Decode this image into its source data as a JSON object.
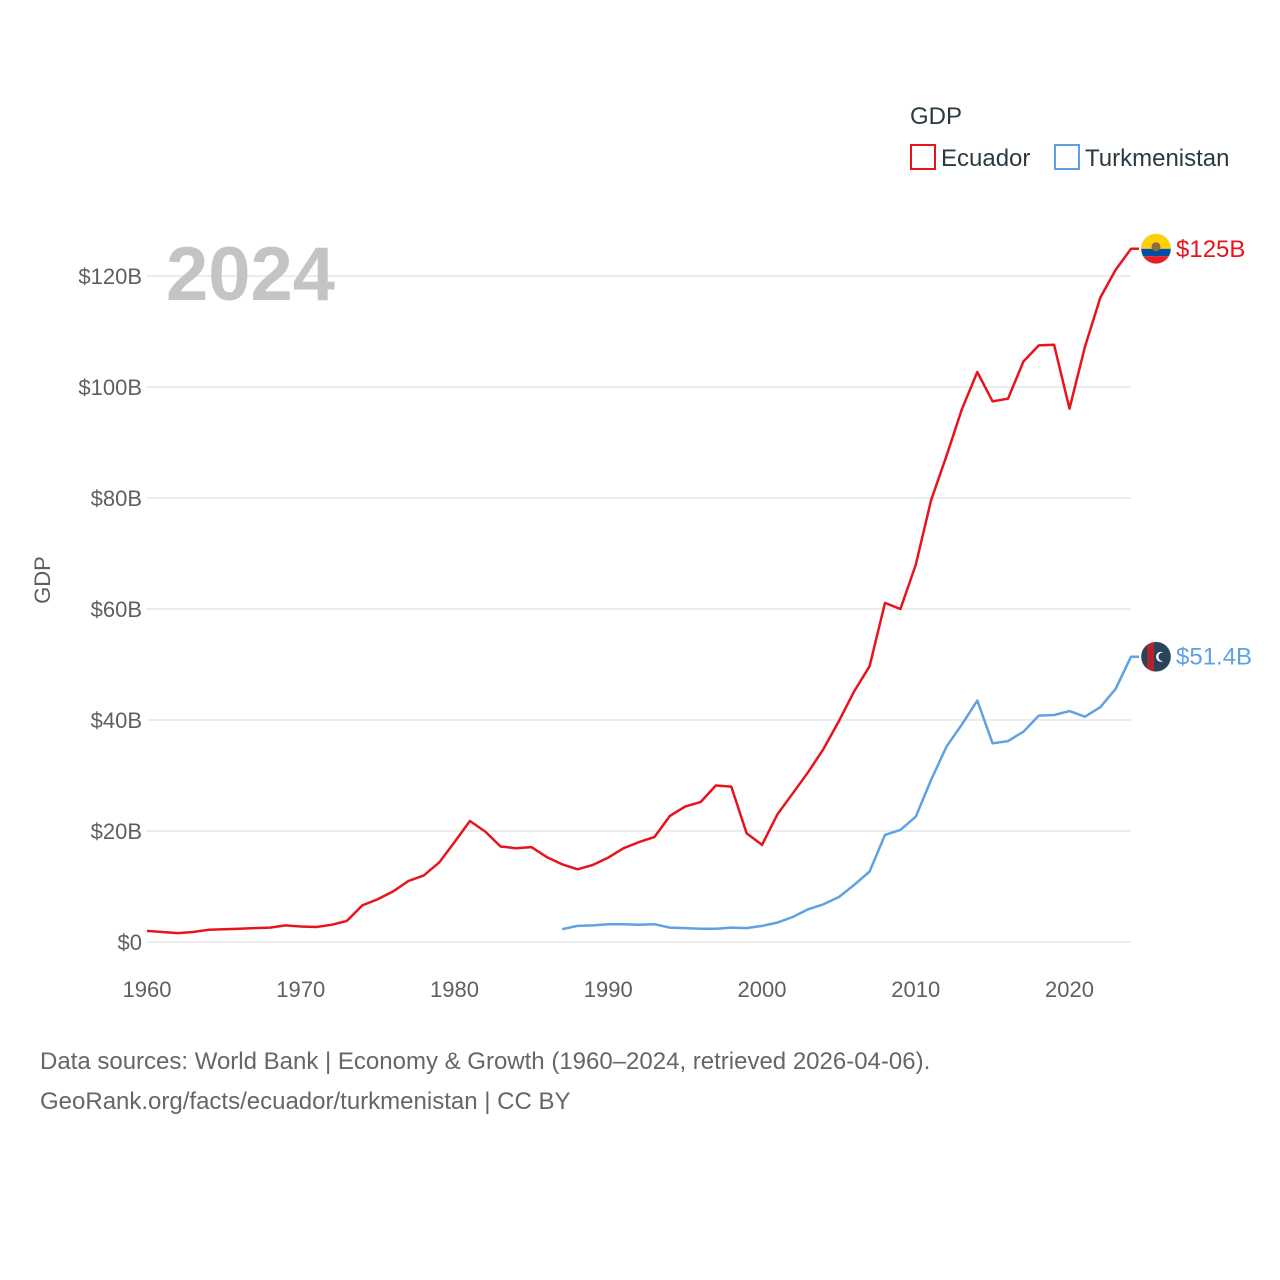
{
  "chart_data": {
    "type": "line",
    "ylabel": "GDP",
    "year_label": "2024",
    "legend_title": "GDP",
    "xlim": [
      1960,
      2024
    ],
    "ylim": [
      0,
      125
    ],
    "x_ticks": [
      1960,
      1970,
      1980,
      1990,
      2000,
      2010,
      2020
    ],
    "x_tick_labels": [
      "1960",
      "1970",
      "1980",
      "1990",
      "2000",
      "2010",
      "2020"
    ],
    "y_ticks": [
      0,
      20,
      40,
      60,
      80,
      100,
      120
    ],
    "y_tick_labels": [
      "$0",
      "$20B",
      "$40B",
      "$60B",
      "$80B",
      "$100B",
      "$120B"
    ],
    "series": [
      {
        "name": "Ecuador",
        "color": "#e8141c",
        "end_label": "$125B",
        "flag_icon": "ecuador-flag-icon",
        "x": [
          1960,
          1961,
          1962,
          1963,
          1964,
          1965,
          1966,
          1967,
          1968,
          1969,
          1970,
          1971,
          1972,
          1973,
          1974,
          1975,
          1976,
          1977,
          1978,
          1979,
          1980,
          1981,
          1982,
          1983,
          1984,
          1985,
          1986,
          1987,
          1988,
          1989,
          1990,
          1991,
          1992,
          1993,
          1994,
          1995,
          1996,
          1997,
          1998,
          1999,
          2000,
          2001,
          2002,
          2003,
          2004,
          2005,
          2006,
          2007,
          2008,
          2009,
          2010,
          2011,
          2012,
          2013,
          2014,
          2015,
          2016,
          2017,
          2018,
          2019,
          2020,
          2021,
          2022,
          2023,
          2024
        ],
        "values": [
          2.0,
          1.8,
          1.6,
          1.8,
          2.2,
          2.3,
          2.4,
          2.5,
          2.6,
          3.0,
          2.8,
          2.7,
          3.1,
          3.8,
          6.6,
          7.7,
          9.1,
          11.0,
          12.0,
          14.3,
          18.0,
          21.8,
          19.9,
          17.2,
          16.9,
          17.1,
          15.3,
          14.0,
          13.1,
          13.9,
          15.2,
          16.9,
          18.0,
          18.9,
          22.7,
          24.4,
          25.2,
          28.2,
          28.0,
          19.6,
          17.5,
          23.0,
          26.8,
          30.6,
          34.8,
          39.8,
          45.2,
          49.7,
          61.1,
          60.0,
          68.0,
          79.6,
          87.6,
          96.0,
          102.7,
          97.4,
          97.9,
          104.6,
          107.5,
          107.6,
          96.1,
          107.2,
          116.1,
          121.1,
          124.9
        ]
      },
      {
        "name": "Turkmenistan",
        "color": "#5fa2e3",
        "end_label": "$51.4B",
        "flag_icon": "turkmenistan-flag-icon",
        "x": [
          1987,
          1988,
          1989,
          1990,
          1991,
          1992,
          1993,
          1994,
          1995,
          1996,
          1997,
          1998,
          1999,
          2000,
          2001,
          2002,
          2003,
          2004,
          2005,
          2006,
          2007,
          2008,
          2009,
          2010,
          2011,
          2012,
          2013,
          2014,
          2015,
          2016,
          2017,
          2018,
          2019,
          2020,
          2021,
          2022,
          2023,
          2024
        ],
        "values": [
          2.3,
          2.9,
          3.0,
          3.2,
          3.2,
          3.1,
          3.2,
          2.6,
          2.5,
          2.4,
          2.4,
          2.6,
          2.5,
          2.9,
          3.5,
          4.5,
          5.9,
          6.8,
          8.1,
          10.3,
          12.7,
          19.3,
          20.2,
          22.6,
          29.2,
          35.2,
          39.2,
          43.5,
          35.8,
          36.2,
          37.9,
          40.8,
          40.9,
          41.6,
          40.6,
          42.3,
          45.6,
          51.4
        ]
      }
    ]
  },
  "source": {
    "line1": "Data sources: World Bank | Economy & Growth (1960–2024, retrieved 2026-04-06).",
    "line2": "GeoRank.org/facts/ecuador/turkmenistan | CC BY"
  }
}
